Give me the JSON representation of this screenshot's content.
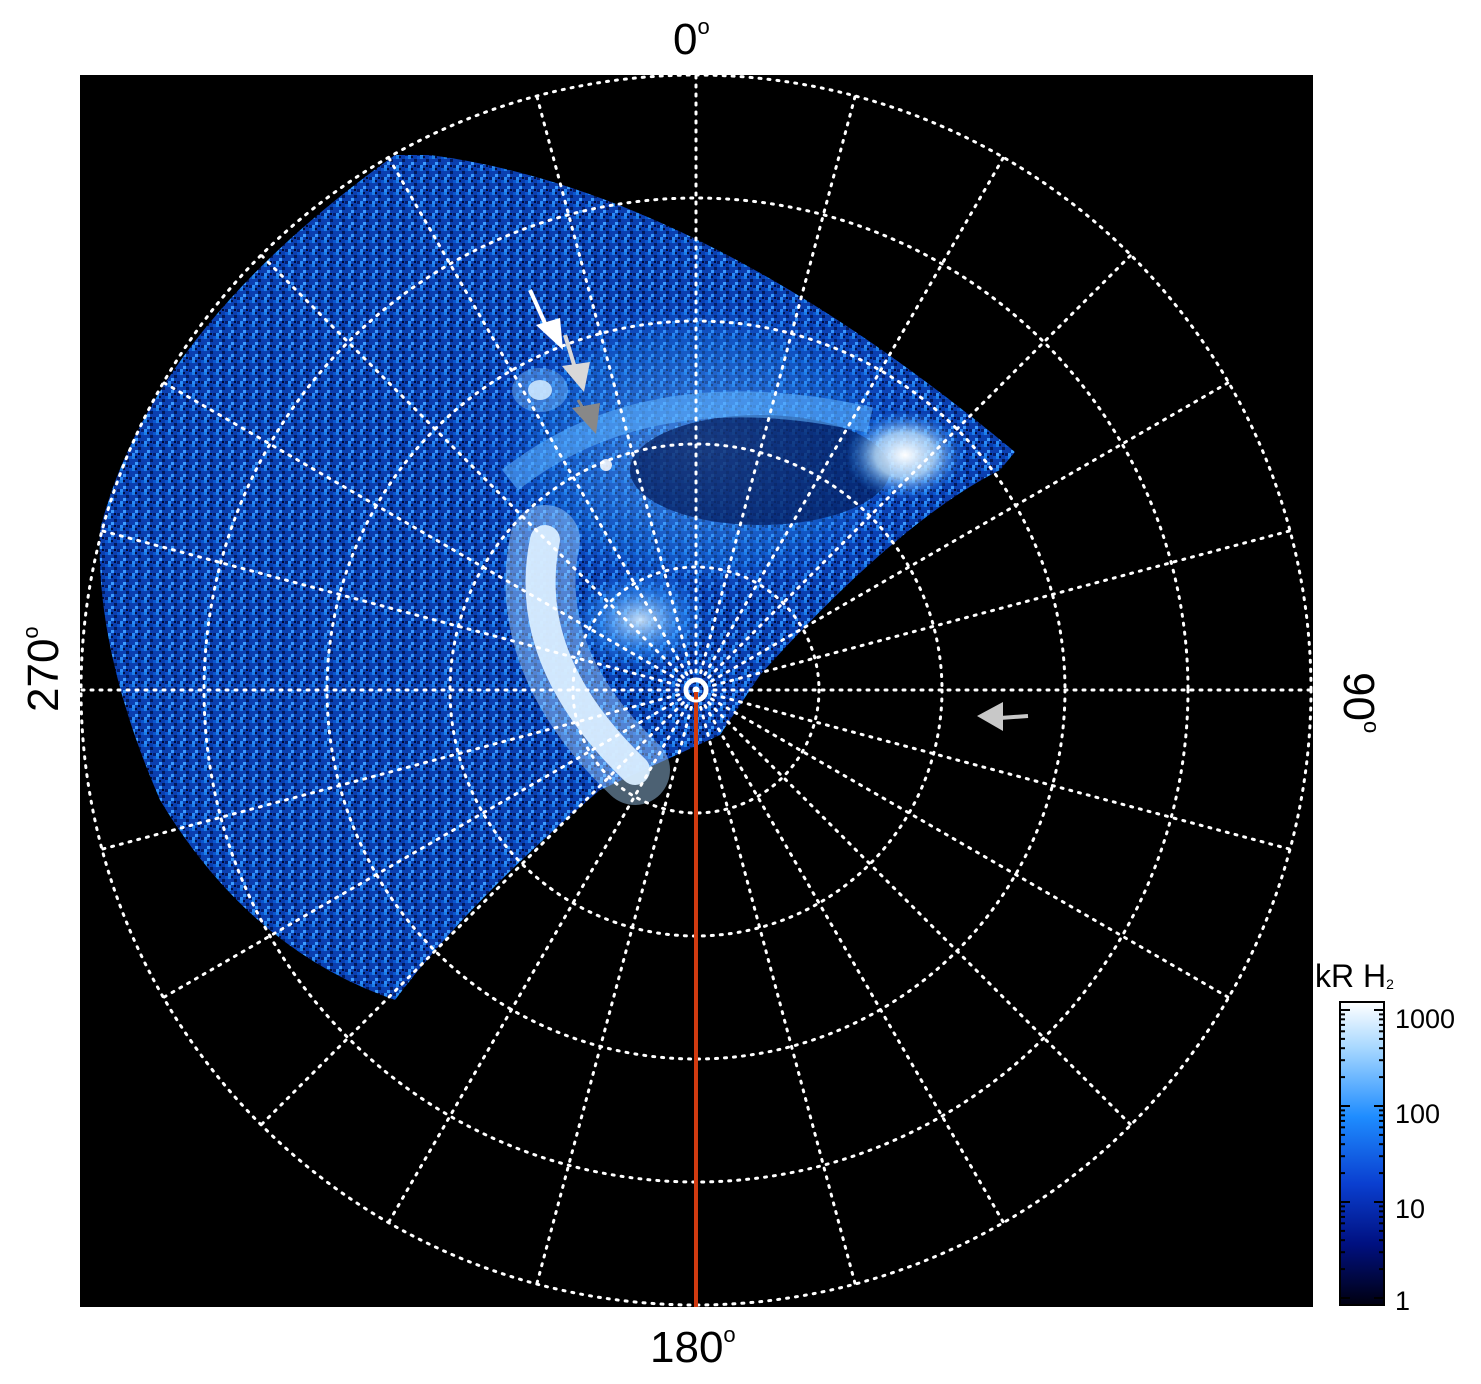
{
  "plot": {
    "angle_labels": {
      "top": "0",
      "bottom": "180",
      "left": "270",
      "right": "90",
      "degree_symbol": "o"
    },
    "background_color": "#000000",
    "grid_color": "#ffffff",
    "meridian_line_color": "#d03a10"
  },
  "colorbar": {
    "title_main": "kR H",
    "title_sub": "2",
    "scale": "log",
    "range": [
      1,
      1000
    ],
    "ticks": [
      "1000",
      "100",
      "10",
      "1"
    ],
    "colors": [
      "#ffffff",
      "#a8d8ff",
      "#1e8cff",
      "#0a3fd0",
      "#001080",
      "#000010"
    ]
  },
  "annotations": [
    {
      "name": "arrow-white-1",
      "color": "#ffffff"
    },
    {
      "name": "arrow-lightgray-2",
      "color": "#d8d8d8"
    },
    {
      "name": "arrow-gray-3",
      "color": "#888888"
    },
    {
      "name": "arrow-gray-right",
      "color": "#c8c8c8"
    }
  ]
}
